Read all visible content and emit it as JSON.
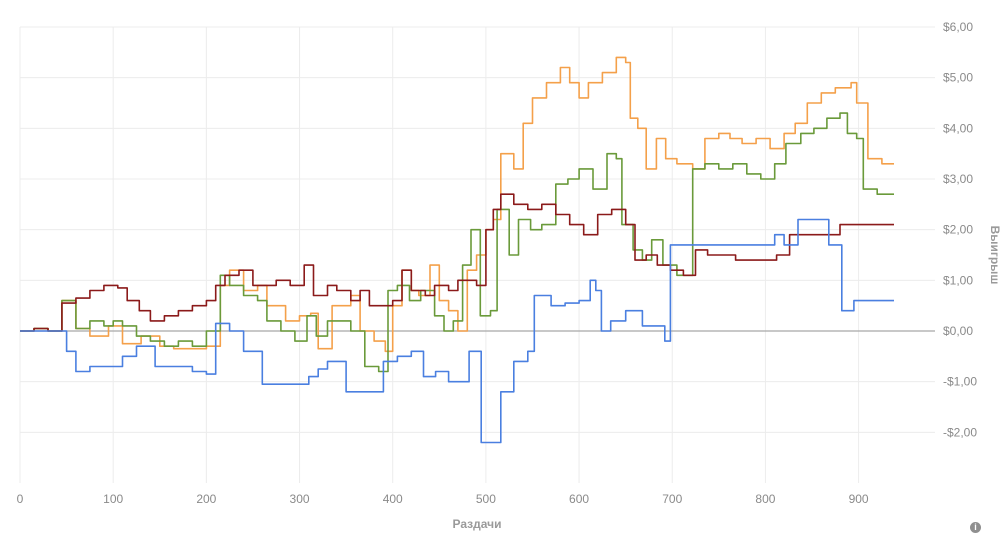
{
  "chart_data": {
    "type": "line",
    "xlabel": "Раздачи",
    "ylabel": "Выигрыш",
    "xlim": [
      0,
      982
    ],
    "ylim": [
      -3,
      6
    ],
    "x_ticks": [
      0,
      100,
      200,
      300,
      400,
      500,
      600,
      700,
      800,
      900
    ],
    "x_tick_labels": [
      "0",
      "100",
      "200",
      "300",
      "400",
      "500",
      "600",
      "700",
      "800",
      "900"
    ],
    "y_ticks": [
      6,
      5,
      4,
      3,
      2,
      1,
      0,
      -1,
      -2
    ],
    "y_tick_labels": [
      "$6,00",
      "$5,00",
      "$4,00",
      "$3,00",
      "$2,00",
      "$1,00",
      "$0,00",
      "-$1,00",
      "-$2,00"
    ],
    "y_axis_position": "right",
    "grid": true,
    "series": [
      {
        "color": "#f4a04a",
        "points": [
          [
            0,
            0
          ],
          [
            15,
            0.05
          ],
          [
            30,
            0
          ],
          [
            45,
            0.6
          ],
          [
            60,
            0.05
          ],
          [
            75,
            -0.1
          ],
          [
            95,
            0.1
          ],
          [
            110,
            -0.25
          ],
          [
            130,
            -0.1
          ],
          [
            150,
            -0.3
          ],
          [
            165,
            -0.35
          ],
          [
            185,
            -0.35
          ],
          [
            200,
            -0.3
          ],
          [
            215,
            0.9
          ],
          [
            225,
            1.2
          ],
          [
            240,
            0.8
          ],
          [
            255,
            0.9
          ],
          [
            265,
            0.5
          ],
          [
            285,
            0.2
          ],
          [
            300,
            0.3
          ],
          [
            312,
            0.35
          ],
          [
            320,
            -0.35
          ],
          [
            335,
            0.5
          ],
          [
            355,
            0.7
          ],
          [
            365,
            0
          ],
          [
            380,
            -0.2
          ],
          [
            392,
            -0.4
          ],
          [
            400,
            0.5
          ],
          [
            410,
            1.2
          ],
          [
            420,
            0.8
          ],
          [
            428,
            0.7
          ],
          [
            440,
            1.3
          ],
          [
            450,
            0.6
          ],
          [
            460,
            0.4
          ],
          [
            470,
            0
          ],
          [
            480,
            1.2
          ],
          [
            490,
            1.5
          ],
          [
            500,
            2
          ],
          [
            508,
            2.2
          ],
          [
            516,
            3.5
          ],
          [
            530,
            3.2
          ],
          [
            540,
            4.1
          ],
          [
            550,
            4.6
          ],
          [
            565,
            4.9
          ],
          [
            580,
            5.2
          ],
          [
            590,
            4.9
          ],
          [
            600,
            4.6
          ],
          [
            610,
            4.9
          ],
          [
            625,
            5.1
          ],
          [
            640,
            5.4
          ],
          [
            650,
            5.3
          ],
          [
            655,
            4.2
          ],
          [
            663,
            4.0
          ],
          [
            672,
            3.2
          ],
          [
            683,
            3.8
          ],
          [
            693,
            3.4
          ],
          [
            705,
            3.3
          ],
          [
            722,
            3.2
          ],
          [
            735,
            3.8
          ],
          [
            750,
            3.9
          ],
          [
            762,
            3.8
          ],
          [
            775,
            3.7
          ],
          [
            790,
            3.8
          ],
          [
            805,
            3.6
          ],
          [
            820,
            3.9
          ],
          [
            832,
            4.1
          ],
          [
            845,
            4.5
          ],
          [
            860,
            4.7
          ],
          [
            875,
            4.8
          ],
          [
            892,
            4.9
          ],
          [
            898,
            4.5
          ],
          [
            910,
            3.4
          ],
          [
            925,
            3.3
          ],
          [
            938,
            3.3
          ]
        ]
      },
      {
        "color": "#6a9a3a",
        "points": [
          [
            0,
            0
          ],
          [
            15,
            0.05
          ],
          [
            30,
            0
          ],
          [
            45,
            0.6
          ],
          [
            60,
            0.05
          ],
          [
            75,
            0.2
          ],
          [
            90,
            0.1
          ],
          [
            100,
            0.2
          ],
          [
            110,
            0.1
          ],
          [
            125,
            -0.1
          ],
          [
            140,
            -0.2
          ],
          [
            155,
            -0.3
          ],
          [
            170,
            -0.2
          ],
          [
            185,
            -0.3
          ],
          [
            200,
            0
          ],
          [
            215,
            1.1
          ],
          [
            225,
            0.9
          ],
          [
            240,
            0.7
          ],
          [
            255,
            0.6
          ],
          [
            265,
            0.2
          ],
          [
            280,
            0.0
          ],
          [
            295,
            -0.2
          ],
          [
            308,
            0.3
          ],
          [
            318,
            -0.1
          ],
          [
            330,
            0.2
          ],
          [
            345,
            0.2
          ],
          [
            355,
            0
          ],
          [
            370,
            -0.7
          ],
          [
            385,
            -0.8
          ],
          [
            395,
            0.8
          ],
          [
            405,
            0.9
          ],
          [
            418,
            0.6
          ],
          [
            430,
            0.8
          ],
          [
            445,
            0.3
          ],
          [
            455,
            0
          ],
          [
            465,
            0.2
          ],
          [
            475,
            1.3
          ],
          [
            484,
            2.0
          ],
          [
            494,
            0.3
          ],
          [
            505,
            0.4
          ],
          [
            512,
            2.4
          ],
          [
            525,
            1.5
          ],
          [
            535,
            2.2
          ],
          [
            548,
            2.0
          ],
          [
            560,
            2.1
          ],
          [
            575,
            2.9
          ],
          [
            588,
            3.0
          ],
          [
            600,
            3.2
          ],
          [
            615,
            2.8
          ],
          [
            630,
            3.5
          ],
          [
            640,
            3.4
          ],
          [
            646,
            2.1
          ],
          [
            658,
            1.6
          ],
          [
            668,
            1.4
          ],
          [
            678,
            1.8
          ],
          [
            690,
            1.3
          ],
          [
            705,
            1.1
          ],
          [
            718,
            1.1
          ],
          [
            722,
            3.2
          ],
          [
            735,
            3.3
          ],
          [
            750,
            3.2
          ],
          [
            765,
            3.3
          ],
          [
            780,
            3.1
          ],
          [
            795,
            3.0
          ],
          [
            810,
            3.3
          ],
          [
            822,
            3.7
          ],
          [
            838,
            3.9
          ],
          [
            852,
            4.0
          ],
          [
            866,
            4.2
          ],
          [
            880,
            4.3
          ],
          [
            888,
            3.9
          ],
          [
            898,
            3.8
          ],
          [
            905,
            2.8
          ],
          [
            920,
            2.7
          ],
          [
            938,
            2.7
          ]
        ]
      },
      {
        "color": "#8b1a1a",
        "points": [
          [
            0,
            0
          ],
          [
            15,
            0.05
          ],
          [
            30,
            0
          ],
          [
            45,
            0.55
          ],
          [
            60,
            0.65
          ],
          [
            75,
            0.8
          ],
          [
            90,
            0.9
          ],
          [
            105,
            0.85
          ],
          [
            115,
            0.6
          ],
          [
            128,
            0.4
          ],
          [
            140,
            0.2
          ],
          [
            155,
            0.3
          ],
          [
            170,
            0.4
          ],
          [
            185,
            0.5
          ],
          [
            200,
            0.6
          ],
          [
            210,
            0.9
          ],
          [
            220,
            1.1
          ],
          [
            235,
            1.2
          ],
          [
            250,
            0.9
          ],
          [
            262,
            0.9
          ],
          [
            275,
            1.0
          ],
          [
            290,
            0.9
          ],
          [
            305,
            1.3
          ],
          [
            315,
            0.7
          ],
          [
            330,
            0.9
          ],
          [
            340,
            0.8
          ],
          [
            355,
            0.6
          ],
          [
            365,
            0.8
          ],
          [
            375,
            0.5
          ],
          [
            390,
            0.5
          ],
          [
            400,
            0.6
          ],
          [
            410,
            1.2
          ],
          [
            420,
            0.8
          ],
          [
            435,
            0.7
          ],
          [
            445,
            0.9
          ],
          [
            460,
            0.8
          ],
          [
            470,
            1.0
          ],
          [
            480,
            1.0
          ],
          [
            490,
            0.9
          ],
          [
            500,
            2.0
          ],
          [
            508,
            2.4
          ],
          [
            516,
            2.7
          ],
          [
            530,
            2.5
          ],
          [
            545,
            2.4
          ],
          [
            560,
            2.5
          ],
          [
            575,
            2.3
          ],
          [
            590,
            2.1
          ],
          [
            605,
            1.9
          ],
          [
            620,
            2.3
          ],
          [
            635,
            2.4
          ],
          [
            650,
            2.1
          ],
          [
            660,
            1.4
          ],
          [
            672,
            1.5
          ],
          [
            684,
            1.3
          ],
          [
            698,
            1.2
          ],
          [
            712,
            1.1
          ],
          [
            725,
            1.6
          ],
          [
            738,
            1.5
          ],
          [
            752,
            1.5
          ],
          [
            768,
            1.4
          ],
          [
            784,
            1.4
          ],
          [
            800,
            1.4
          ],
          [
            812,
            1.5
          ],
          [
            826,
            1.9
          ],
          [
            840,
            1.9
          ],
          [
            852,
            1.9
          ],
          [
            866,
            1.9
          ],
          [
            880,
            2.1
          ],
          [
            896,
            2.1
          ],
          [
            910,
            2.1
          ],
          [
            925,
            2.1
          ],
          [
            938,
            2.1
          ]
        ]
      },
      {
        "color": "#4a7fe0",
        "points": [
          [
            0,
            0
          ],
          [
            45,
            0
          ],
          [
            50,
            -0.4
          ],
          [
            60,
            -0.8
          ],
          [
            75,
            -0.7
          ],
          [
            105,
            -0.7
          ],
          [
            110,
            -0.5
          ],
          [
            125,
            -0.3
          ],
          [
            145,
            -0.7
          ],
          [
            185,
            -0.8
          ],
          [
            200,
            -0.85
          ],
          [
            210,
            0.15
          ],
          [
            225,
            0
          ],
          [
            240,
            -0.4
          ],
          [
            260,
            -1.05
          ],
          [
            300,
            -1.05
          ],
          [
            310,
            -0.9
          ],
          [
            320,
            -0.75
          ],
          [
            330,
            -0.6
          ],
          [
            350,
            -1.2
          ],
          [
            385,
            -1.2
          ],
          [
            390,
            -0.6
          ],
          [
            405,
            -0.5
          ],
          [
            420,
            -0.4
          ],
          [
            433,
            -0.9
          ],
          [
            446,
            -0.8
          ],
          [
            460,
            -1.0
          ],
          [
            475,
            -1.0
          ],
          [
            482,
            -0.4
          ],
          [
            495,
            -2.2
          ],
          [
            510,
            -2.2
          ],
          [
            516,
            -1.2
          ],
          [
            530,
            -0.6
          ],
          [
            545,
            -0.4
          ],
          [
            552,
            0.7
          ],
          [
            570,
            0.5
          ],
          [
            585,
            0.55
          ],
          [
            600,
            0.6
          ],
          [
            612,
            1.0
          ],
          [
            618,
            0.8
          ],
          [
            624,
            0
          ],
          [
            634,
            0.2
          ],
          [
            650,
            0.4
          ],
          [
            668,
            0.1
          ],
          [
            682,
            0.1
          ],
          [
            692,
            -0.2
          ],
          [
            698,
            1.7
          ],
          [
            720,
            1.7
          ],
          [
            760,
            1.7
          ],
          [
            790,
            1.7
          ],
          [
            810,
            1.9
          ],
          [
            820,
            1.7
          ],
          [
            835,
            2.2
          ],
          [
            860,
            2.2
          ],
          [
            868,
            1.7
          ],
          [
            875,
            1.7
          ],
          [
            882,
            0.4
          ],
          [
            895,
            0.6
          ],
          [
            938,
            0.6
          ]
        ]
      }
    ]
  },
  "icons": {
    "info": "info-icon"
  }
}
